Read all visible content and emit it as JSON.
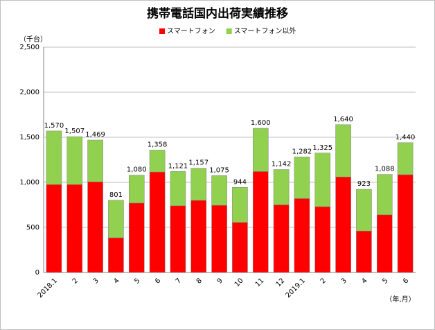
{
  "chart_data": {
    "type": "stacked_bar",
    "title": "携帯電話国内出荷実績推移",
    "y_unit": "（千台）",
    "x_unit": "（年,月）",
    "categories": [
      "2018.1",
      "2",
      "3",
      "4",
      "5",
      "6",
      "7",
      "8",
      "9",
      "10",
      "11",
      "12",
      "2019.1",
      "2",
      "3",
      "4",
      "5",
      "6"
    ],
    "series": [
      {
        "name": "スマートフォン",
        "color": "#ff0000",
        "values": [
          975,
          975,
          1005,
          385,
          770,
          1115,
          740,
          800,
          745,
          555,
          1120,
          750,
          820,
          730,
          1060,
          460,
          640,
          1085
        ]
      },
      {
        "name": "スマートフォン以外",
        "color": "#92d050",
        "values": [
          595,
          532,
          464,
          416,
          310,
          243,
          381,
          357,
          330,
          389,
          480,
          392,
          462,
          595,
          580,
          463,
          448,
          355
        ]
      }
    ],
    "totals": [
      1570,
      1507,
      1469,
      801,
      1080,
      1358,
      1121,
      1157,
      1075,
      944,
      1600,
      1142,
      1282,
      1325,
      1640,
      923,
      1088,
      1440
    ],
    "total_labels": [
      "1,570",
      "1,507",
      "1,469",
      "801",
      "1,080",
      "1,358",
      "1,121",
      "1,157",
      "1,075",
      "944",
      "1,600",
      "1,142",
      "1,282",
      "1,325",
      "1,640",
      "923",
      "1,088",
      "1,440"
    ],
    "ylim": [
      0,
      2500
    ],
    "yticks": [
      0,
      500,
      {
        "value": 1000,
        "label": "1,000"
      },
      {
        "value": 1500,
        "label": "1,500"
      },
      {
        "value": 2000,
        "label": "2,000"
      },
      {
        "value": 2500,
        "label": "2,500"
      }
    ],
    "grid": true,
    "legend": "top"
  }
}
